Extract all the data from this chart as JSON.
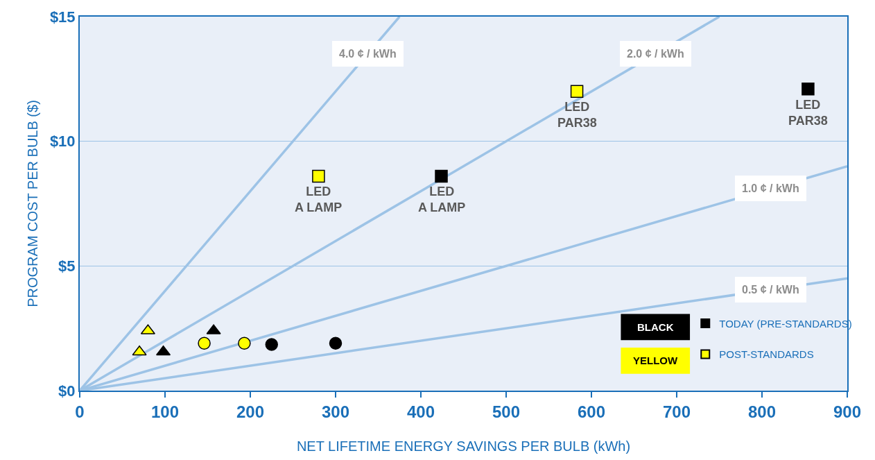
{
  "chart_data": {
    "type": "scatter",
    "xlabel": "NET LIFETIME ENERGY SAVINGS PER BULB (kWh)",
    "ylabel": "PROGRAM COST PER BULB ($)",
    "xlim": [
      0,
      900
    ],
    "xticks": [
      0,
      100,
      200,
      300,
      400,
      500,
      600,
      700,
      800,
      900
    ],
    "ylim": [
      0,
      15
    ],
    "yticks": [
      {
        "value": 0,
        "label": "$0"
      },
      {
        "value": 5,
        "label": "$5"
      },
      {
        "value": 10,
        "label": "$10"
      },
      {
        "value": 15,
        "label": "$15"
      }
    ],
    "grid": "y",
    "legend": "bottom right",
    "series": [
      {
        "type": "line",
        "name": "4.0 ¢ / kWh",
        "color": "#9dc3e6",
        "x": [
          0,
          375
        ],
        "values": [
          0,
          15
        ],
        "marker": "none"
      },
      {
        "type": "line",
        "name": "2.0 ¢ / kWh",
        "color": "#9dc3e6",
        "x": [
          0,
          750
        ],
        "values": [
          0,
          15
        ],
        "marker": "none"
      },
      {
        "type": "line",
        "name": "1.0 ¢ / kWh",
        "color": "#9dc3e6",
        "x": [
          0,
          900
        ],
        "values": [
          0,
          9
        ],
        "marker": "none"
      },
      {
        "type": "line",
        "name": "0.5 ¢ / kWh",
        "color": "#9dc3e6",
        "x": [
          0,
          900
        ],
        "values": [
          0,
          4.5
        ],
        "marker": "none"
      },
      {
        "name": "TODAY (PRE-STANDARDS)",
        "color": "#000000",
        "marker": "square",
        "x": [
          424,
          854
        ],
        "values": [
          8.6,
          12.1
        ]
      },
      {
        "color": "#000000",
        "marker": "triangle",
        "x": [
          98,
          157
        ],
        "values": [
          1.55,
          2.4
        ]
      },
      {
        "color": "#000000",
        "marker": "circle",
        "x": [
          225,
          300
        ],
        "values": [
          1.85,
          1.9
        ]
      },
      {
        "name": "POST-STANDARDS",
        "color": "#ffff00",
        "marker": "square",
        "x": [
          280,
          583
        ],
        "values": [
          8.6,
          12.0
        ]
      },
      {
        "color": "#ffff00",
        "marker": "triangle",
        "x": [
          70,
          80
        ],
        "values": [
          1.55,
          2.4
        ]
      },
      {
        "color": "#ffff00",
        "marker": "circle",
        "x": [
          146,
          193
        ],
        "values": [
          1.9,
          1.9
        ]
      }
    ],
    "annotations": [
      {
        "text": "LED\nA LAMP",
        "x": 280,
        "y": 8.6
      },
      {
        "text": "LED\nA LAMP",
        "x": 424,
        "y": 8.6
      },
      {
        "text": "LED\nPAR38",
        "x": 583,
        "y": 12.0
      },
      {
        "text": "LED\nPAR38",
        "x": 854,
        "y": 12.1
      },
      "BLACK",
      "YELLOW"
    ]
  }
}
